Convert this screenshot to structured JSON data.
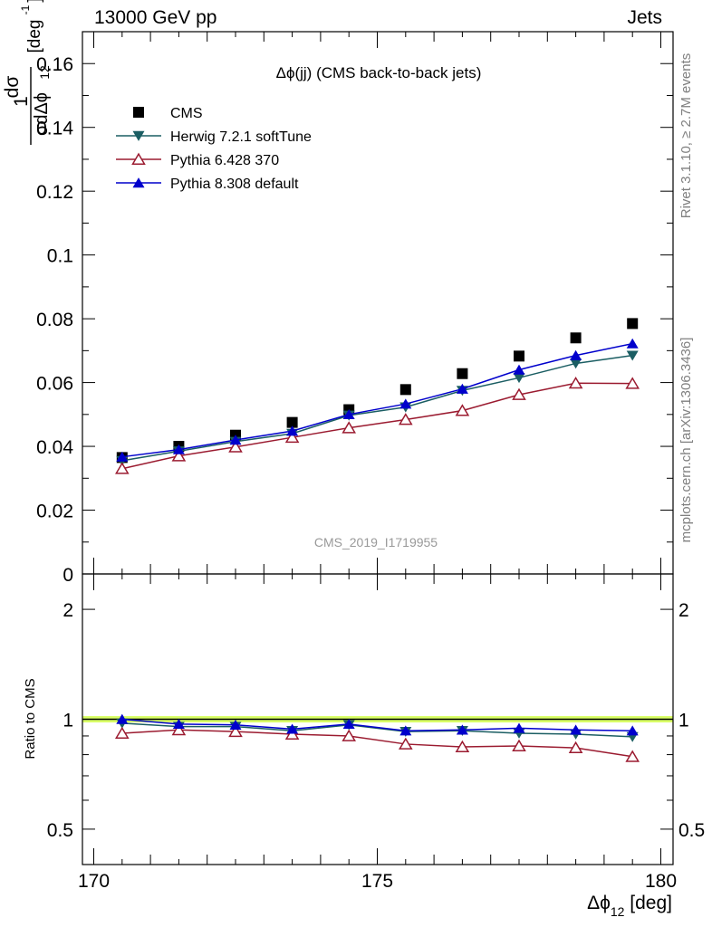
{
  "header": {
    "energy_label": "13000 GeV pp",
    "process_label": "Jets"
  },
  "side_labels": {
    "rivet": "Rivet 3.1.10, ≥ 2.7M events",
    "mcplots": "mcplots.cern.ch [arXiv:1306.3436]"
  },
  "watermark": "CMS_2019_I1719955",
  "chart_data": [
    {
      "type": "line",
      "title": "Δϕ(jj) (CMS back-to-back jets)",
      "ylabel": "1/σ dσ/dΔϕ12 [deg-1]",
      "xlim": [
        170,
        180
      ],
      "ylim": [
        0,
        0.17
      ],
      "yticks": [
        "0",
        "0.02",
        "0.04",
        "0.06",
        "0.08",
        "0.1",
        "0.12",
        "0.14",
        "0.16"
      ],
      "x": [
        170.5,
        171.5,
        172.5,
        173.5,
        174.5,
        175.5,
        176.5,
        177.5,
        178.5,
        179.5
      ],
      "legend_placement": "top-left",
      "series": [
        {
          "name": "CMS",
          "marker": "square",
          "color": "#000000",
          "values": [
            0.0365,
            0.04,
            0.0435,
            0.0475,
            0.0515,
            0.0578,
            0.0628,
            0.0683,
            0.074,
            0.0785
          ]
        },
        {
          "name": "Herwig 7.2.1 softTune",
          "marker": "triangle-down",
          "color": "#1b5e63",
          "values": [
            0.0355,
            0.0385,
            0.0415,
            0.044,
            0.0497,
            0.0523,
            0.0575,
            0.0615,
            0.066,
            0.0685
          ]
        },
        {
          "name": "Pythia 6.428 370",
          "marker": "triangle-up-open",
          "color": "#9b1b30",
          "values": [
            0.033,
            0.037,
            0.0398,
            0.0428,
            0.0458,
            0.0484,
            0.0512,
            0.0562,
            0.0598,
            0.0597
          ]
        },
        {
          "name": "Pythia 8.308 default",
          "marker": "triangle-up",
          "color": "#0000cc",
          "values": [
            0.0367,
            0.039,
            0.042,
            0.0448,
            0.05,
            0.0533,
            0.058,
            0.064,
            0.0685,
            0.0722
          ]
        }
      ]
    },
    {
      "type": "line",
      "ylabel": "Ratio to CMS",
      "xlabel": "Δϕ12 [deg]",
      "xlim": [
        170,
        180
      ],
      "xticks": [
        "170",
        "175",
        "180"
      ],
      "ylim": [
        0.4,
        2.5
      ],
      "yscale": "log",
      "yticks": [
        "0.5",
        "1",
        "2"
      ],
      "x": [
        170.5,
        171.5,
        172.5,
        173.5,
        174.5,
        175.5,
        176.5,
        177.5,
        178.5,
        179.5
      ],
      "band": {
        "center": 1.0,
        "color": "#ccff33"
      },
      "series": [
        {
          "name": "Herwig 7.2.1 softTune",
          "marker": "triangle-down",
          "color": "#1b5e63",
          "values": [
            0.975,
            0.955,
            0.955,
            0.93,
            0.965,
            0.925,
            0.93,
            0.915,
            0.91,
            0.895
          ]
        },
        {
          "name": "Pythia 6.428 370",
          "marker": "triangle-up-open",
          "color": "#9b1b30",
          "values": [
            0.915,
            0.935,
            0.925,
            0.91,
            0.9,
            0.855,
            0.84,
            0.845,
            0.835,
            0.79
          ]
        },
        {
          "name": "Pythia 8.308 default",
          "marker": "triangle-up",
          "color": "#0000cc",
          "values": [
            1.0,
            0.97,
            0.965,
            0.94,
            0.97,
            0.93,
            0.935,
            0.945,
            0.935,
            0.93
          ]
        }
      ]
    }
  ]
}
